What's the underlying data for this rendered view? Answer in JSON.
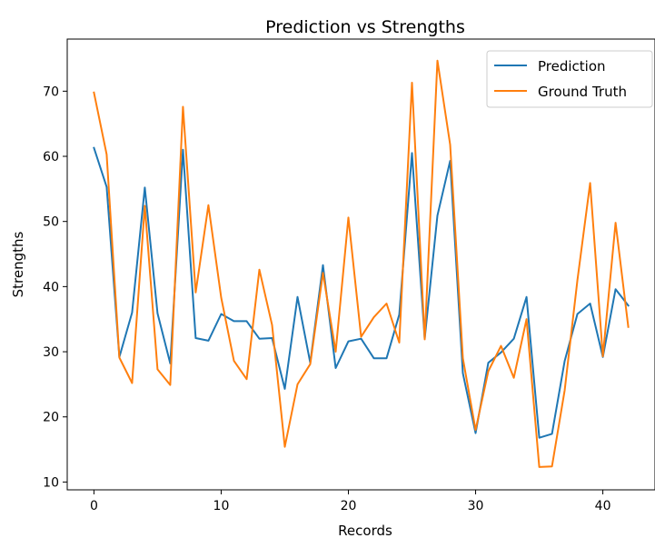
{
  "chart_data": {
    "type": "line",
    "title": "Prediction vs Strengths",
    "xlabel": "Records",
    "ylabel": "Strengths",
    "xlim": [
      -2.1,
      44.1
    ],
    "ylim": [
      8.8,
      78.0
    ],
    "xticks": [
      0,
      10,
      20,
      30,
      40
    ],
    "yticks": [
      10,
      20,
      30,
      40,
      50,
      60,
      70
    ],
    "grid": false,
    "legend": "top-right",
    "x": [
      0,
      1,
      2,
      3,
      4,
      5,
      6,
      7,
      8,
      9,
      10,
      11,
      12,
      13,
      14,
      15,
      16,
      17,
      18,
      19,
      20,
      21,
      22,
      23,
      24,
      25,
      26,
      27,
      28,
      29,
      30,
      31,
      32,
      33,
      34,
      35,
      36,
      37,
      38,
      39,
      40,
      41,
      42
    ],
    "series": [
      {
        "name": "Prediction",
        "color": "#1f77b4",
        "values": [
          61.3,
          55.3,
          29.2,
          36.0,
          55.2,
          35.9,
          28.2,
          61.0,
          32.1,
          31.7,
          35.8,
          34.7,
          34.7,
          32.0,
          32.1,
          24.3,
          38.4,
          28.3,
          43.3,
          27.5,
          31.6,
          32.0,
          29.0,
          29.0,
          35.7,
          60.5,
          32.0,
          50.9,
          59.3,
          26.7,
          17.5,
          28.3,
          29.9,
          32.0,
          38.4,
          16.8,
          17.4,
          28.6,
          35.8,
          37.4,
          29.2,
          39.6,
          37.1
        ]
      },
      {
        "name": "Ground Truth",
        "color": "#ff7f0e",
        "values": [
          69.8,
          60.3,
          29.1,
          25.2,
          52.4,
          27.3,
          24.9,
          67.6,
          39.1,
          52.5,
          38.3,
          28.6,
          25.8,
          42.6,
          34.1,
          15.4,
          25.0,
          28.1,
          42.1,
          30.0,
          50.6,
          32.3,
          35.3,
          37.4,
          31.4,
          71.3,
          31.9,
          74.7,
          61.8,
          29.0,
          18.0,
          27.0,
          30.9,
          26.0,
          35.0,
          12.3,
          12.4,
          24.1,
          41.0,
          55.9,
          29.3,
          49.8,
          33.8
        ]
      }
    ]
  }
}
